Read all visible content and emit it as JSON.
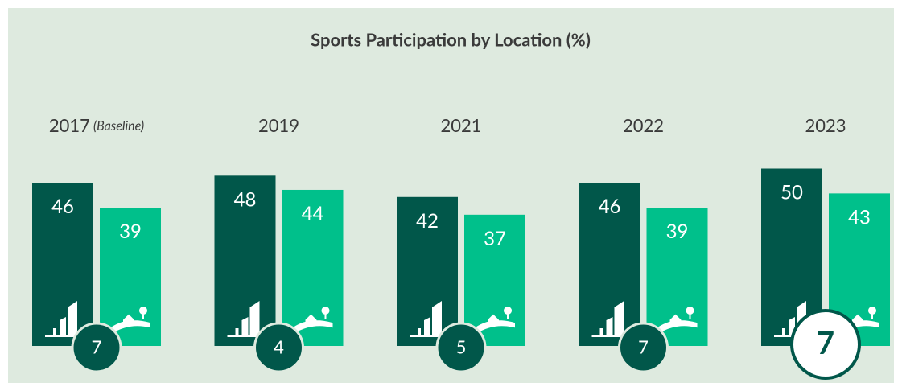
{
  "chart_data": {
    "type": "bar",
    "title": "Sports Participation by Location (%)",
    "categories": [
      "2017",
      "2019",
      "2021",
      "2022",
      "2023"
    ],
    "category_notes": [
      "(Baseline)",
      null,
      null,
      null,
      null
    ],
    "series": [
      {
        "color": "#01574a",
        "values": [
          46,
          48,
          42,
          46,
          50
        ]
      },
      {
        "color": "#00c08b",
        "values": [
          39,
          44,
          37,
          39,
          43
        ]
      }
    ],
    "gaps": [
      7,
      4,
      5,
      7,
      7
    ]
  }
}
